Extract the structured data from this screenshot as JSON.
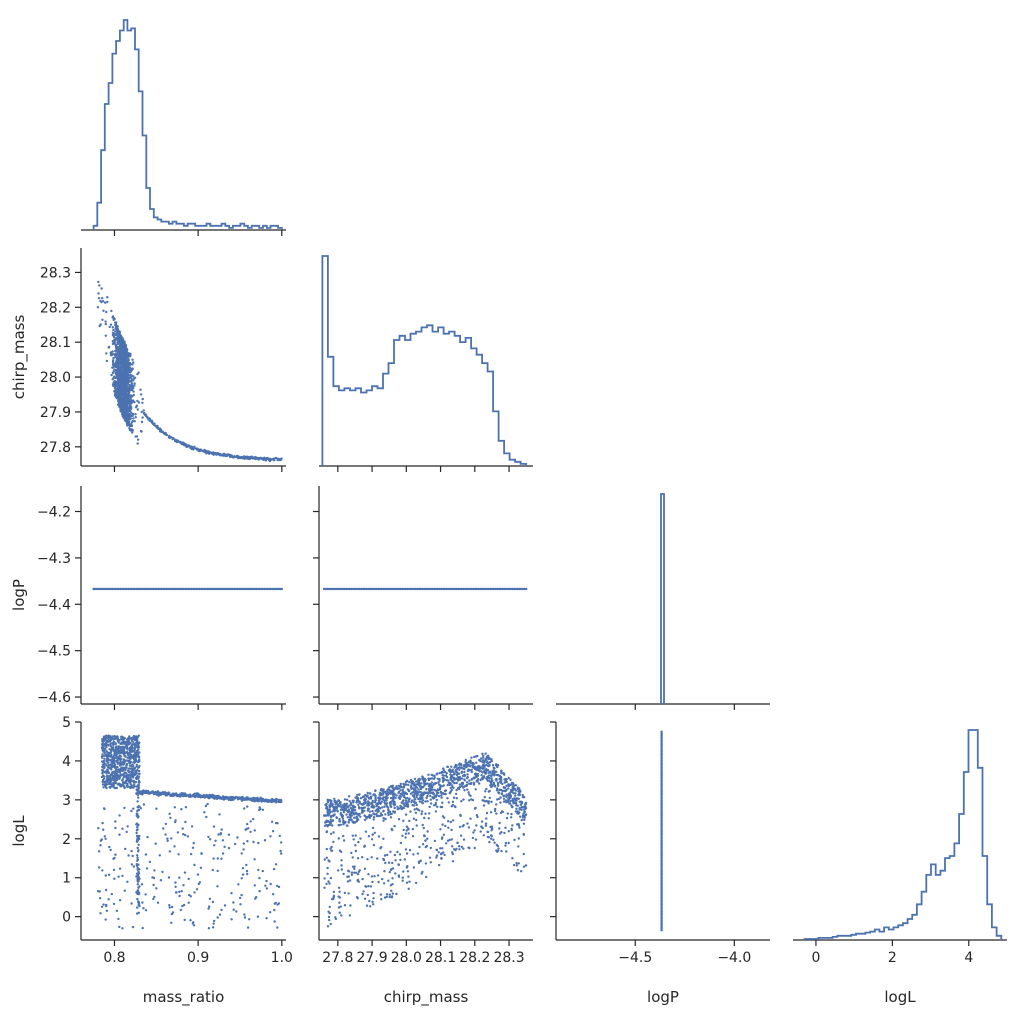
{
  "chart_data": {
    "type": "corner",
    "color": "#4c72b0",
    "variables": [
      {
        "name": "mass_ratio",
        "range": [
          0.76,
          1.005
        ],
        "ticks": [
          0.8,
          0.9,
          1.0
        ],
        "tick_labels": [
          "0.8",
          "0.9",
          "1.0"
        ]
      },
      {
        "name": "chirp_mass",
        "range": [
          27.745,
          28.37
        ],
        "ticks": [
          27.8,
          27.9,
          28.0,
          28.1,
          28.2,
          28.3
        ],
        "tick_labels": [
          "27.8",
          "27.9",
          "28.0",
          "28.1",
          "28.2",
          "28.3"
        ]
      },
      {
        "name": "logP",
        "range": [
          -4.615,
          -4.145
        ],
        "xrange": [
          -4.9,
          -3.82
        ],
        "ticks": [
          -4.6,
          -4.5,
          -4.4,
          -4.3,
          -4.2
        ],
        "tick_labels": [
          "−4.6",
          "−4.5",
          "−4.4",
          "−4.3",
          "−4.2"
        ],
        "xticks": [
          -4.5,
          -4.0
        ],
        "xtick_labels": [
          "−4.5",
          "−4.0"
        ]
      },
      {
        "name": "logL",
        "range": [
          -0.6,
          5.0
        ],
        "xrange": [
          -0.6,
          5.0
        ],
        "ticks": [
          0,
          1,
          2,
          3,
          4,
          5
        ],
        "tick_labels": [
          "0",
          "1",
          "2",
          "3",
          "4",
          "5"
        ],
        "xticks": [
          0,
          2,
          4
        ],
        "xtick_labels": [
          "0",
          "2",
          "4"
        ]
      }
    ],
    "histograms": [
      {
        "var": "mass_ratio",
        "edges_range": [
          0.775,
          1.0
        ],
        "counts": [
          2,
          13,
          38,
          60,
          70,
          84,
          90,
          95,
          100,
          95,
          96,
          86,
          66,
          45,
          20,
          10,
          6,
          5,
          4,
          4,
          3,
          4,
          3,
          3,
          2,
          3,
          3,
          2,
          2,
          2,
          3,
          2,
          2,
          2,
          3,
          2,
          1,
          2,
          2,
          3,
          2,
          1,
          2,
          2,
          1,
          2,
          1,
          2,
          2,
          1
        ]
      },
      {
        "var": "chirp_mass",
        "edges_range": [
          27.755,
          28.35
        ],
        "counts": [
          100,
          52,
          38,
          36,
          37,
          36,
          37,
          35,
          36,
          38,
          37,
          44,
          49,
          60,
          62,
          60,
          63,
          64,
          66,
          67,
          64,
          66,
          63,
          64,
          62,
          59,
          61,
          56,
          53,
          49,
          45,
          26,
          12,
          6,
          3,
          2,
          1
        ]
      },
      {
        "var": "logP",
        "edges": [
          -4.37,
          -4.355
        ],
        "counts": [
          100
        ]
      },
      {
        "var": "logL",
        "edges_range": [
          -0.3,
          4.85
        ],
        "counts": [
          0.5,
          0.5,
          0.5,
          1,
          1,
          1,
          1.5,
          2,
          2,
          2,
          2.5,
          3,
          3,
          3.5,
          4,
          5,
          4,
          6,
          5,
          6,
          7,
          8,
          10,
          12,
          17,
          23,
          31,
          36,
          31,
          33,
          39,
          40,
          46,
          60,
          80,
          100,
          100,
          82,
          40,
          17,
          6,
          2
        ]
      }
    ],
    "scatter_pairs": [
      {
        "x": "mass_ratio",
        "y": "chirp_mass"
      },
      {
        "x": "mass_ratio",
        "y": "logP",
        "constant_y": -4.367
      },
      {
        "x": "chirp_mass",
        "y": "logP",
        "constant_y": -4.367
      },
      {
        "x": "mass_ratio",
        "y": "logL"
      },
      {
        "x": "chirp_mass",
        "y": "logL"
      },
      {
        "x": "logP",
        "y": "logL",
        "constant_x": -4.367
      }
    ]
  }
}
